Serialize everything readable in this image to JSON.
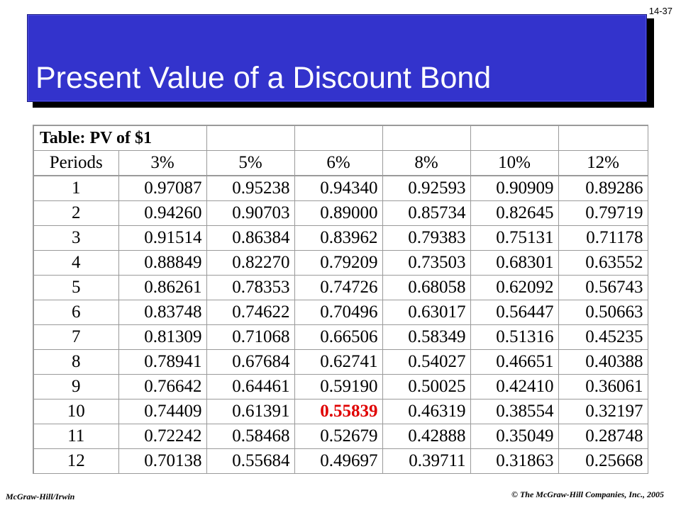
{
  "slide": {
    "number": "14-37",
    "title": "Present Value of a Discount Bond"
  },
  "table": {
    "caption": "Table: PV of $1",
    "period_header": "Periods",
    "rate_headers": [
      "3%",
      "5%",
      "6%",
      "8%",
      "10%",
      "12%"
    ],
    "rows": [
      {
        "period": "1",
        "values": [
          "0.97087",
          "0.95238",
          "0.94340",
          "0.92593",
          "0.90909",
          "0.89286"
        ]
      },
      {
        "period": "2",
        "values": [
          "0.94260",
          "0.90703",
          "0.89000",
          "0.85734",
          "0.82645",
          "0.79719"
        ]
      },
      {
        "period": "3",
        "values": [
          "0.91514",
          "0.86384",
          "0.83962",
          "0.79383",
          "0.75131",
          "0.71178"
        ]
      },
      {
        "period": "4",
        "values": [
          "0.88849",
          "0.82270",
          "0.79209",
          "0.73503",
          "0.68301",
          "0.63552"
        ]
      },
      {
        "period": "5",
        "values": [
          "0.86261",
          "0.78353",
          "0.74726",
          "0.68058",
          "0.62092",
          "0.56743"
        ]
      },
      {
        "period": "6",
        "values": [
          "0.83748",
          "0.74622",
          "0.70496",
          "0.63017",
          "0.56447",
          "0.50663"
        ]
      },
      {
        "period": "7",
        "values": [
          "0.81309",
          "0.71068",
          "0.66506",
          "0.58349",
          "0.51316",
          "0.45235"
        ]
      },
      {
        "period": "8",
        "values": [
          "0.78941",
          "0.67684",
          "0.62741",
          "0.54027",
          "0.46651",
          "0.40388"
        ]
      },
      {
        "period": "9",
        "values": [
          "0.76642",
          "0.64461",
          "0.59190",
          "0.50025",
          "0.42410",
          "0.36061"
        ]
      },
      {
        "period": "10",
        "values": [
          "0.74409",
          "0.61391",
          "0.55839",
          "0.46319",
          "0.38554",
          "0.32197"
        ]
      },
      {
        "period": "11",
        "values": [
          "0.72242",
          "0.58468",
          "0.52679",
          "0.42888",
          "0.35049",
          "0.28748"
        ]
      },
      {
        "period": "12",
        "values": [
          "0.70138",
          "0.55684",
          "0.49697",
          "0.39711",
          "0.31863",
          "0.25668"
        ]
      }
    ],
    "highlight_color": "#e00000"
  },
  "footer": {
    "left": "McGraw-Hill/Irwin",
    "right": "© The McGraw-Hill Companies, Inc., 2005"
  },
  "colors": {
    "title_background": "#3333cc",
    "title_text": "#ffffff"
  }
}
